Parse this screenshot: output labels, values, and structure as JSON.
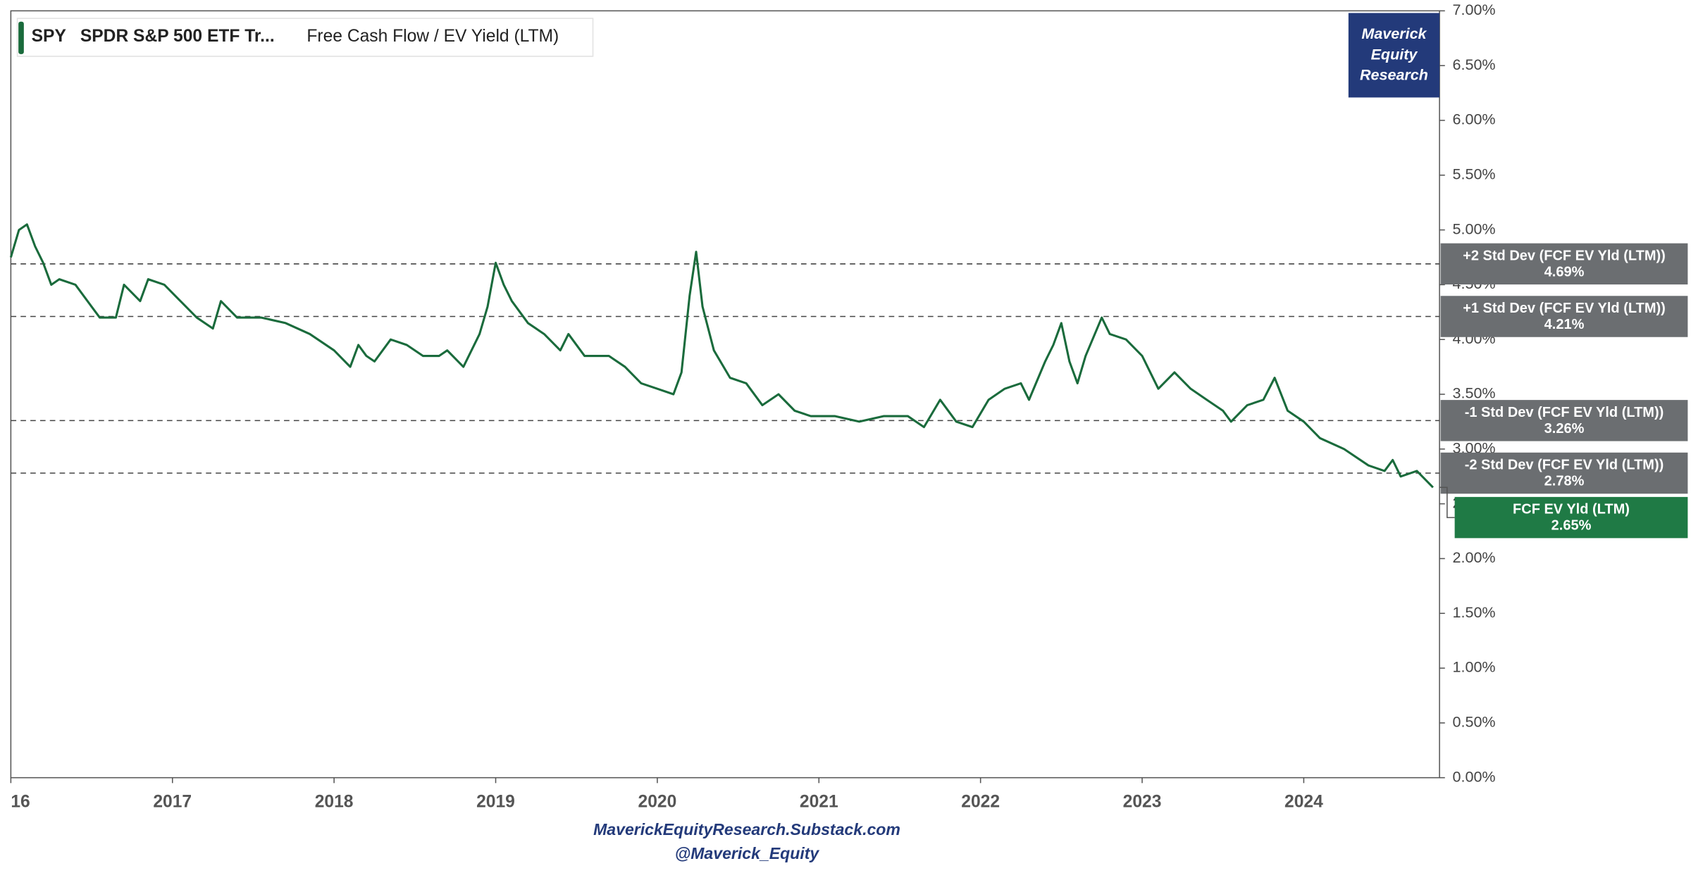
{
  "chart_data": {
    "type": "line",
    "header": {
      "ticker": "SPY",
      "name": "SPDR S&P 500 ETF Tr...",
      "metric": "Free Cash Flow / EV Yield (LTM)"
    },
    "watermark": "Maverick Equity Research",
    "footer": [
      "MaverickEquityResearch.Substack.com",
      "@Maverick_Equity"
    ],
    "xlim": [
      2016,
      2024.84
    ],
    "xticks": [
      {
        "value": 2016,
        "label": "16"
      },
      2017,
      2018,
      2019,
      2020,
      2021,
      2022,
      2023,
      2024
    ],
    "ylim": [
      0,
      7
    ],
    "yticks": [
      {
        "value": 0,
        "label": "0.00%"
      },
      {
        "value": 0.5,
        "label": "0.50%"
      },
      {
        "value": 1,
        "label": "1.00%"
      },
      {
        "value": 1.5,
        "label": "1.50%"
      },
      {
        "value": 2,
        "label": "2.00%"
      },
      {
        "value": 2.5,
        "label": "2.50%"
      },
      {
        "value": 3,
        "label": "3.00%"
      },
      {
        "value": 3.5,
        "label": "3.50%"
      },
      {
        "value": 4,
        "label": "4.00%"
      },
      {
        "value": 4.5,
        "label": "4.50%"
      },
      {
        "value": 5,
        "label": "5.00%"
      },
      {
        "value": 5.5,
        "label": "5.50%"
      },
      {
        "value": 6,
        "label": "6.00%"
      },
      {
        "value": 6.5,
        "label": "6.50%"
      },
      {
        "value": 7,
        "label": "7.00%"
      }
    ],
    "reference_lines": [
      {
        "name": "+2 Std Dev (FCF EV Yld (LTM))",
        "value": 4.69,
        "label": "4.69%"
      },
      {
        "name": "+1 Std Dev (FCF EV Yld (LTM))",
        "value": 4.21,
        "label": "4.21%"
      },
      {
        "name": "-1 Std Dev (FCF EV Yld (LTM))",
        "value": 3.26,
        "label": "3.26%"
      },
      {
        "name": "-2 Std Dev (FCF EV Yld (LTM))",
        "value": 2.78,
        "label": "2.78%"
      }
    ],
    "series": [
      {
        "name": "FCF EV Yld (LTM)",
        "color": "#1a6b3c",
        "last_label": "2.65%",
        "x": [
          2016.0,
          2016.05,
          2016.1,
          2016.15,
          2016.2,
          2016.25,
          2016.3,
          2016.4,
          2016.5,
          2016.55,
          2016.65,
          2016.7,
          2016.8,
          2016.85,
          2016.95,
          2017.05,
          2017.15,
          2017.25,
          2017.3,
          2017.4,
          2017.55,
          2017.7,
          2017.85,
          2018.0,
          2018.1,
          2018.15,
          2018.2,
          2018.25,
          2018.35,
          2018.45,
          2018.55,
          2018.65,
          2018.7,
          2018.8,
          2018.9,
          2018.95,
          2019.0,
          2019.05,
          2019.1,
          2019.2,
          2019.3,
          2019.4,
          2019.45,
          2019.55,
          2019.7,
          2019.8,
          2019.9,
          2020.0,
          2020.1,
          2020.15,
          2020.2,
          2020.24,
          2020.28,
          2020.35,
          2020.45,
          2020.55,
          2020.65,
          2020.75,
          2020.85,
          2020.95,
          2021.1,
          2021.25,
          2021.4,
          2021.55,
          2021.65,
          2021.75,
          2021.85,
          2021.95,
          2022.05,
          2022.15,
          2022.25,
          2022.3,
          2022.4,
          2022.45,
          2022.5,
          2022.55,
          2022.6,
          2022.65,
          2022.75,
          2022.8,
          2022.9,
          2023.0,
          2023.1,
          2023.2,
          2023.3,
          2023.4,
          2023.5,
          2023.55,
          2023.65,
          2023.75,
          2023.82,
          2023.9,
          2024.0,
          2024.1,
          2024.25,
          2024.4,
          2024.5,
          2024.55,
          2024.6,
          2024.7,
          2024.8
        ],
        "values": [
          4.75,
          5.0,
          5.05,
          4.85,
          4.7,
          4.5,
          4.55,
          4.5,
          4.3,
          4.2,
          4.2,
          4.5,
          4.35,
          4.55,
          4.5,
          4.35,
          4.2,
          4.1,
          4.35,
          4.2,
          4.2,
          4.15,
          4.05,
          3.9,
          3.75,
          3.95,
          3.85,
          3.8,
          4.0,
          3.95,
          3.85,
          3.85,
          3.9,
          3.75,
          4.05,
          4.3,
          4.7,
          4.5,
          4.35,
          4.15,
          4.05,
          3.9,
          4.05,
          3.85,
          3.85,
          3.75,
          3.6,
          3.55,
          3.5,
          3.7,
          4.4,
          4.8,
          4.3,
          3.9,
          3.65,
          3.6,
          3.4,
          3.5,
          3.35,
          3.3,
          3.3,
          3.25,
          3.3,
          3.3,
          3.2,
          3.45,
          3.25,
          3.2,
          3.45,
          3.55,
          3.6,
          3.45,
          3.8,
          3.95,
          4.15,
          3.8,
          3.6,
          3.85,
          4.2,
          4.05,
          4.0,
          3.85,
          3.55,
          3.7,
          3.55,
          3.45,
          3.35,
          3.25,
          3.4,
          3.45,
          3.65,
          3.35,
          3.25,
          3.1,
          3.0,
          2.85,
          2.8,
          2.9,
          2.75,
          2.8,
          2.65
        ]
      }
    ]
  }
}
